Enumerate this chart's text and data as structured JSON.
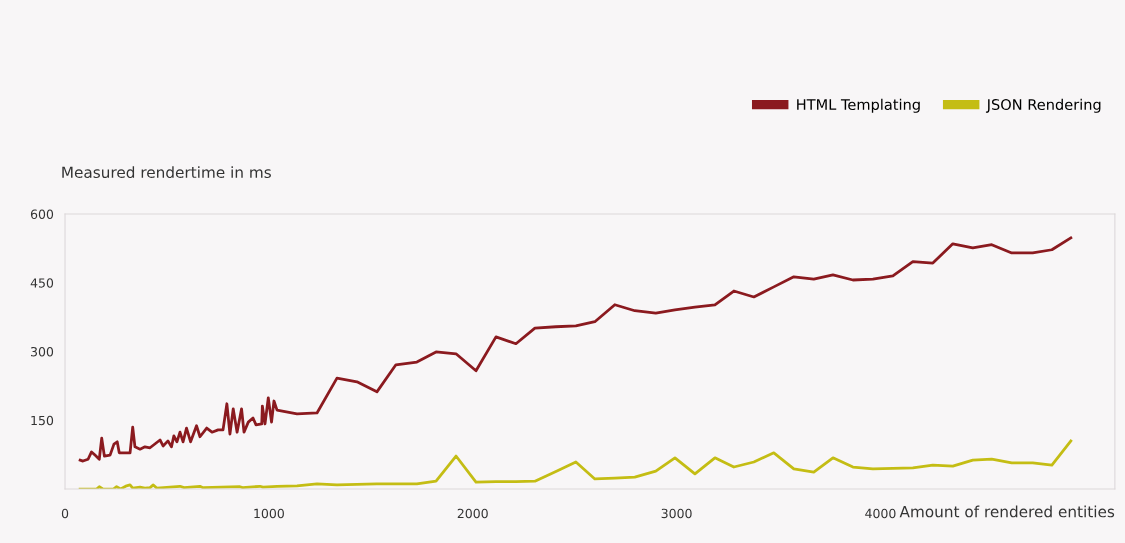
{
  "chart_data": {
    "type": "line",
    "xlabel": "Amount of rendered entities",
    "ylabel": "Measured rendertime in ms",
    "xlim": [
      0,
      5150
    ],
    "ylim": [
      0,
      600
    ],
    "xticks": [
      0,
      1000,
      2000,
      3000,
      4000
    ],
    "yticks": [
      150,
      300,
      450,
      600
    ],
    "legend": "top right",
    "grid": false,
    "marker": "none",
    "line_style": "solid",
    "series": [
      {
        "name": "HTML Templating",
        "color": "#8b1a1f",
        "x": [
          74,
          88,
          113,
          130,
          147,
          168,
          180,
          193,
          221,
          240,
          256,
          266,
          319,
          332,
          343,
          368,
          392,
          417,
          466,
          481,
          505,
          522,
          534,
          549,
          564,
          579,
          596,
          616,
          645,
          662,
          695,
          721,
          751,
          775,
          794,
          809,
          825,
          844,
          866,
          878,
          899,
          922,
          937,
          965,
          968,
          981,
          997,
          1013,
          1025,
          1040,
          1138,
          1236,
          1334,
          1432,
          1530,
          1623,
          1726,
          1820,
          1918,
          2016,
          2114,
          2212,
          2305,
          2408,
          2506,
          2599,
          2697,
          2795,
          2898,
          2992,
          3090,
          3188,
          3281,
          3379,
          3477,
          3575,
          3673,
          3767,
          3865,
          3963,
          4061,
          4159,
          4257,
          4355,
          4453,
          4546,
          4644,
          4747,
          4841,
          4934
        ],
        "values": [
          63,
          61,
          65,
          81,
          74,
          65,
          111,
          72,
          74,
          98,
          103,
          79,
          79,
          135,
          92,
          87,
          92,
          90,
          107,
          94,
          105,
          92,
          116,
          103,
          124,
          103,
          133,
          103,
          138,
          114,
          133,
          124,
          129,
          129,
          186,
          120,
          175,
          124,
          175,
          124,
          146,
          155,
          140,
          142,
          181,
          142,
          199,
          146,
          192,
          172,
          164,
          166,
          242,
          234,
          212,
          271,
          277,
          299,
          295,
          258,
          332,
          317,
          351,
          354,
          356,
          365,
          402,
          389,
          384,
          391,
          397,
          402,
          432,
          419,
          441,
          463,
          458,
          467,
          456,
          458,
          465,
          496,
          493,
          535,
          526,
          533,
          515,
          515,
          522,
          548
        ]
      },
      {
        "name": "JSON Rendering",
        "color": "#c4bd14",
        "x": [
          74,
          155,
          168,
          185,
          237,
          253,
          273,
          302,
          319,
          332,
          368,
          392,
          417,
          433,
          450,
          564,
          584,
          662,
          677,
          858,
          871,
          956,
          971,
          1040,
          1138,
          1236,
          1334,
          1432,
          1530,
          1623,
          1726,
          1820,
          1918,
          2016,
          2114,
          2212,
          2305,
          2408,
          2506,
          2599,
          2697,
          2795,
          2898,
          2992,
          3090,
          3188,
          3281,
          3379,
          3477,
          3575,
          3673,
          3767,
          3865,
          3963,
          4061,
          4159,
          4257,
          4355,
          4453,
          4546,
          4644,
          4747,
          4841,
          4934
        ],
        "values": [
          0,
          0,
          5,
          0,
          0,
          5,
          0,
          7,
          9,
          2,
          4,
          2,
          3,
          9,
          2,
          6,
          3,
          6,
          3,
          5,
          3,
          6,
          4,
          6,
          7,
          11,
          9,
          10,
          11,
          11,
          11,
          17,
          72,
          15,
          16,
          16,
          17,
          38,
          59,
          22,
          24,
          26,
          39,
          68,
          33,
          68,
          48,
          59,
          79,
          44,
          37,
          68,
          48,
          44,
          45,
          46,
          52,
          50,
          63,
          65,
          57,
          57,
          52,
          105
        ]
      }
    ]
  }
}
